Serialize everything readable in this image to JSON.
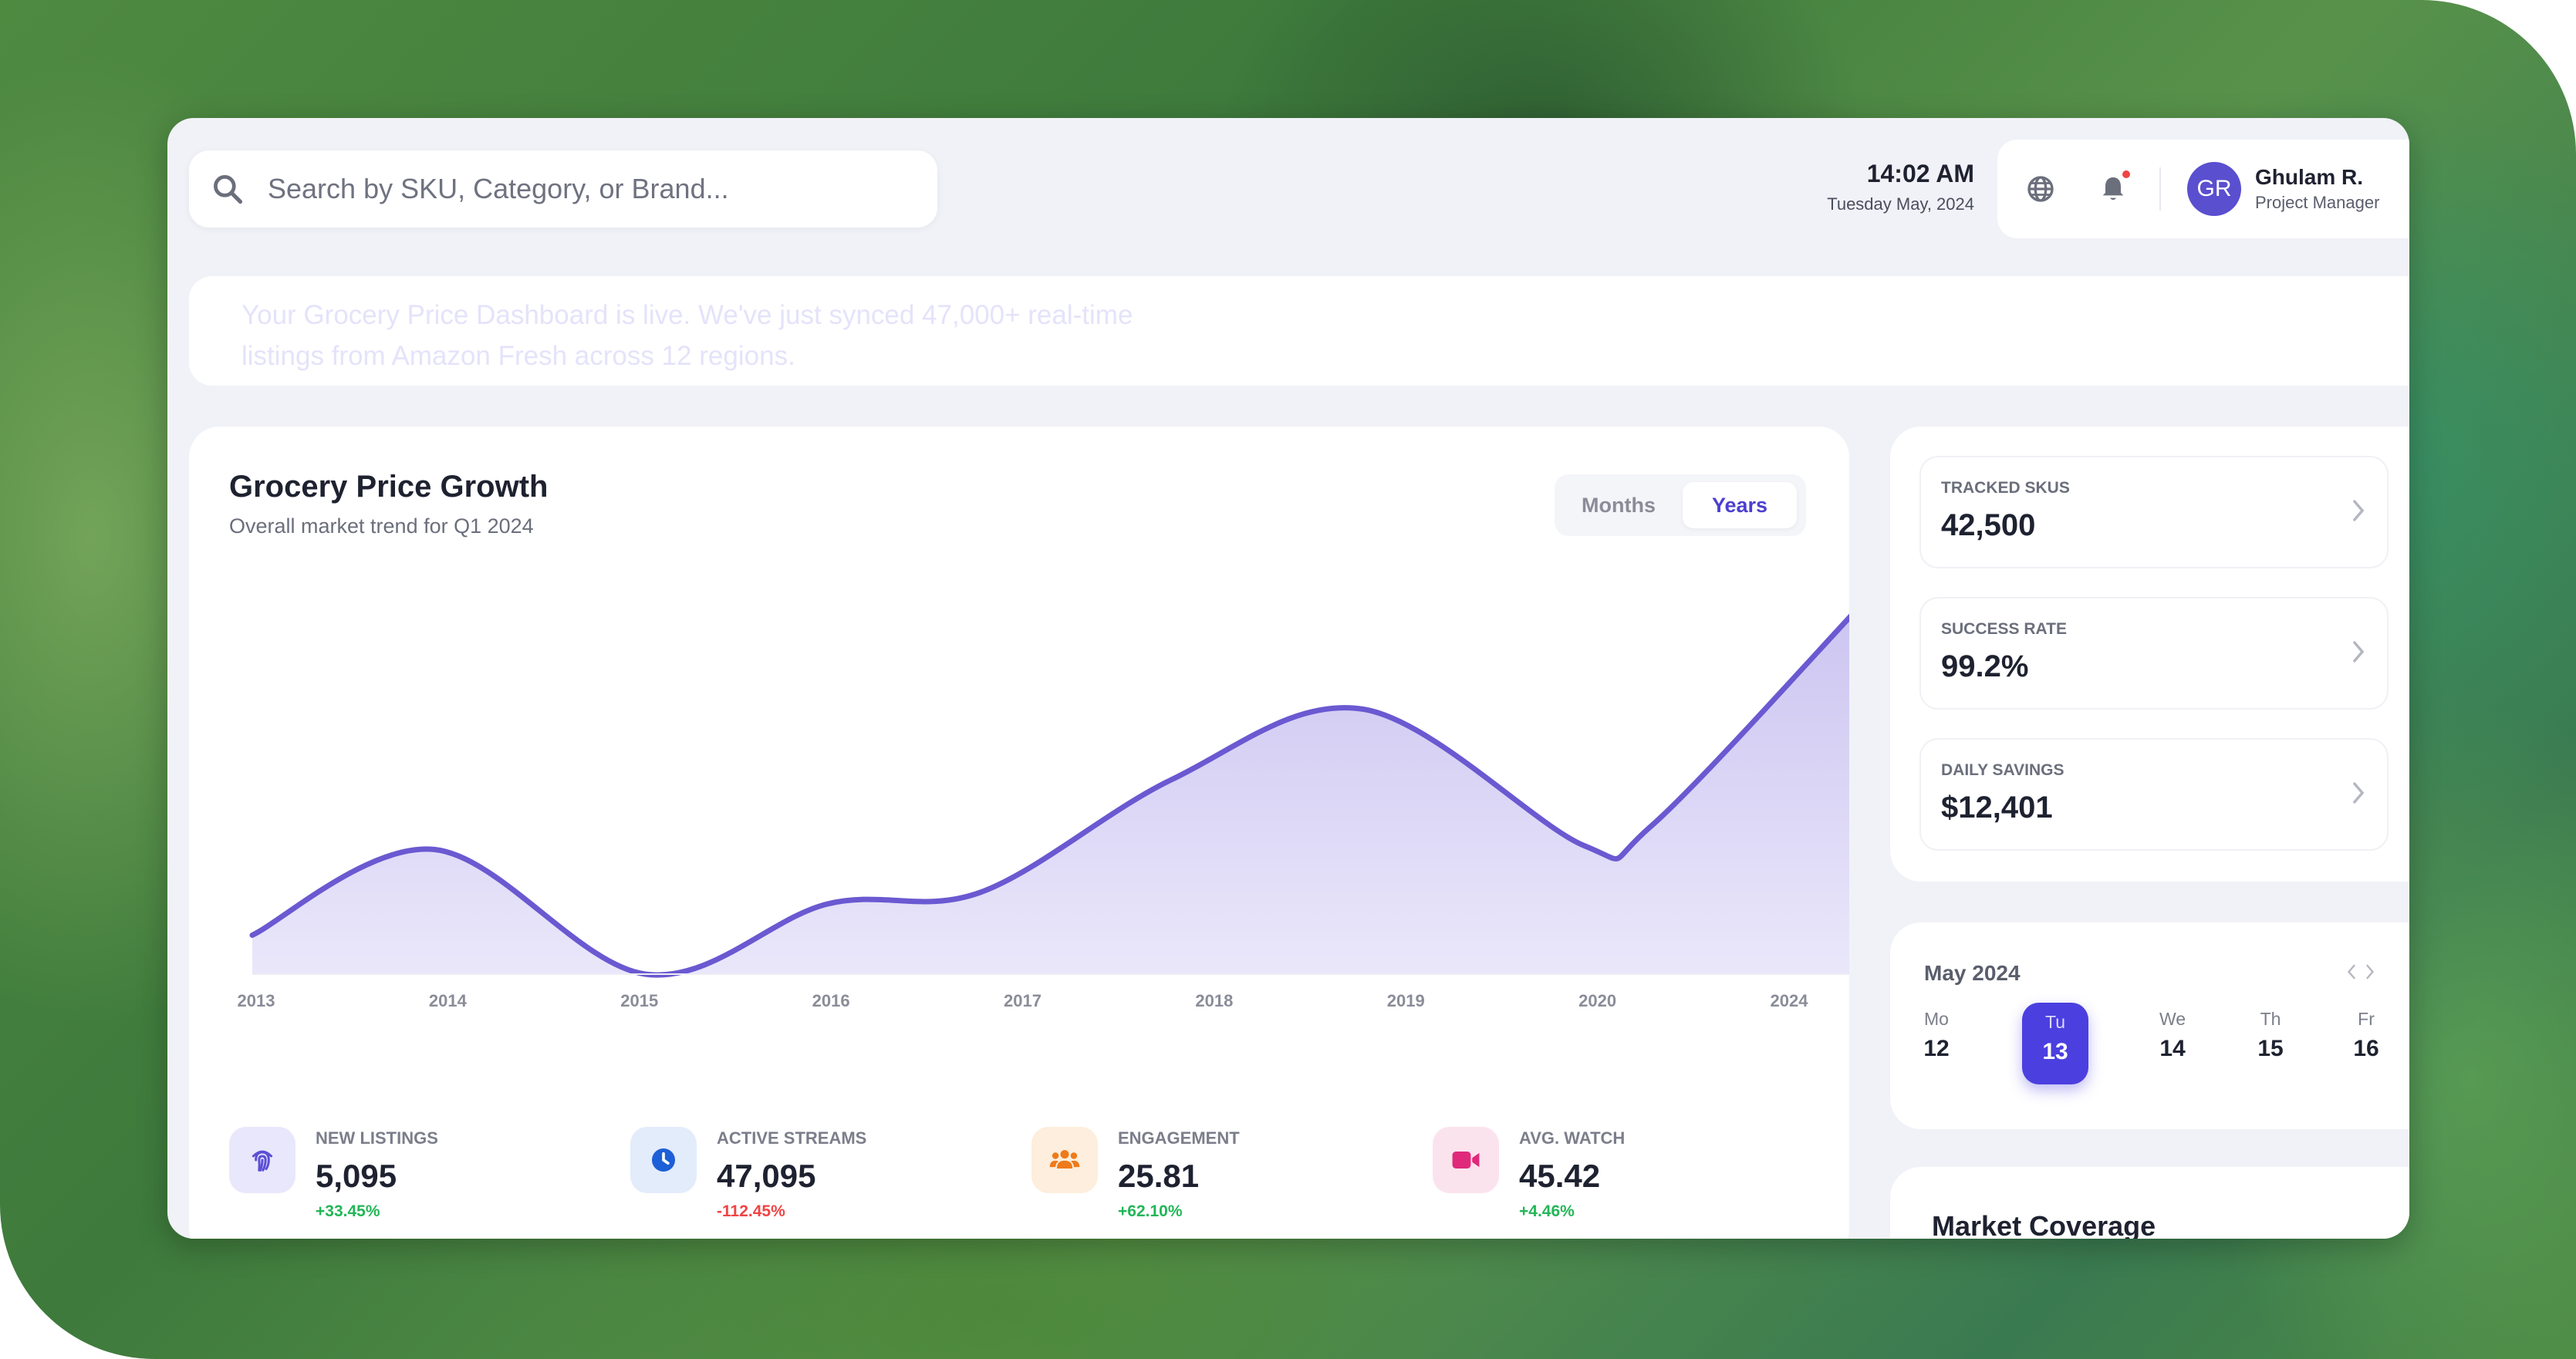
{
  "search": {
    "placeholder": "Search by SKU, Category, or Brand..."
  },
  "header": {
    "time": "14:02 AM",
    "date": "Tuesday May, 2024"
  },
  "user": {
    "initials": "GR",
    "name": "Ghulam R.",
    "role": "Project Manager"
  },
  "banner": {
    "text": "Your Grocery Price Dashboard is live. We've just synced 47,000+ real-time listings from Amazon Fresh across 12 regions."
  },
  "chart_card": {
    "title": "Grocery Price Growth",
    "subtitle": "Overall market trend for Q1 2024",
    "toggle_months": "Months",
    "toggle_years": "Years",
    "active_toggle": "Years"
  },
  "chart_data": {
    "type": "area",
    "title": "Grocery Price Growth",
    "subtitle": "Overall market trend for Q1 2024",
    "x": [
      "2013",
      "2014",
      "2015",
      "2016",
      "2017",
      "2018",
      "2019",
      "2020",
      "2024"
    ],
    "curve_points": [
      {
        "x": 2013.0,
        "y": 10
      },
      {
        "x": 2013.95,
        "y": 32
      },
      {
        "x": 2015.05,
        "y": 0
      },
      {
        "x": 2016.0,
        "y": 18
      },
      {
        "x": 2016.8,
        "y": 21
      },
      {
        "x": 2017.8,
        "y": 50
      },
      {
        "x": 2018.8,
        "y": 68
      },
      {
        "x": 2019.95,
        "y": 33
      },
      {
        "x": 2020.3,
        "y": 38
      },
      {
        "x": 2021.4,
        "y": 95
      }
    ],
    "grid": false,
    "colors": {
      "line": "#6a59d1",
      "fill": "#d3cdf3"
    }
  },
  "stats": [
    {
      "label": "NEW LISTINGS",
      "value": "5,095",
      "change": "+33.45%",
      "trend": "up",
      "icon": "fingerprint-icon",
      "icon_color": "#5b4fd6",
      "icon_bg": "#e9e7fb"
    },
    {
      "label": "ACTIVE STREAMS",
      "value": "47,095",
      "change": "-112.45%",
      "trend": "down",
      "icon": "clock-icon",
      "icon_color": "#1d5fd6",
      "icon_bg": "#e3ecfb"
    },
    {
      "label": "ENGAGEMENT",
      "value": "25.81",
      "change": "+62.10%",
      "trend": "up",
      "icon": "users-icon",
      "icon_color": "#ef7a1a",
      "icon_bg": "#fdeedd"
    },
    {
      "label": "AVG. WATCH",
      "value": "45.42",
      "change": "+4.46%",
      "trend": "up",
      "icon": "video-icon",
      "icon_color": "#e0297a",
      "icon_bg": "#fbe3ee"
    }
  ],
  "metrics": [
    {
      "label": "TRACKED SKUS",
      "value": "42,500"
    },
    {
      "label": "SUCCESS RATE",
      "value": "99.2%"
    },
    {
      "label": "DAILY SAVINGS",
      "value": "$12,401"
    }
  ],
  "calendar": {
    "month": "May 2024",
    "days": [
      {
        "dow": "Mo",
        "num": "12",
        "active": false
      },
      {
        "dow": "Tu",
        "num": "13",
        "active": true
      },
      {
        "dow": "We",
        "num": "14",
        "active": false
      },
      {
        "dow": "Th",
        "num": "15",
        "active": false
      },
      {
        "dow": "Fr",
        "num": "16",
        "active": false
      }
    ]
  },
  "coverage": {
    "title": "Market Coverage"
  },
  "colors": {
    "accent": "#4b3fe0",
    "positive": "#22b657",
    "negative": "#ef4444"
  }
}
